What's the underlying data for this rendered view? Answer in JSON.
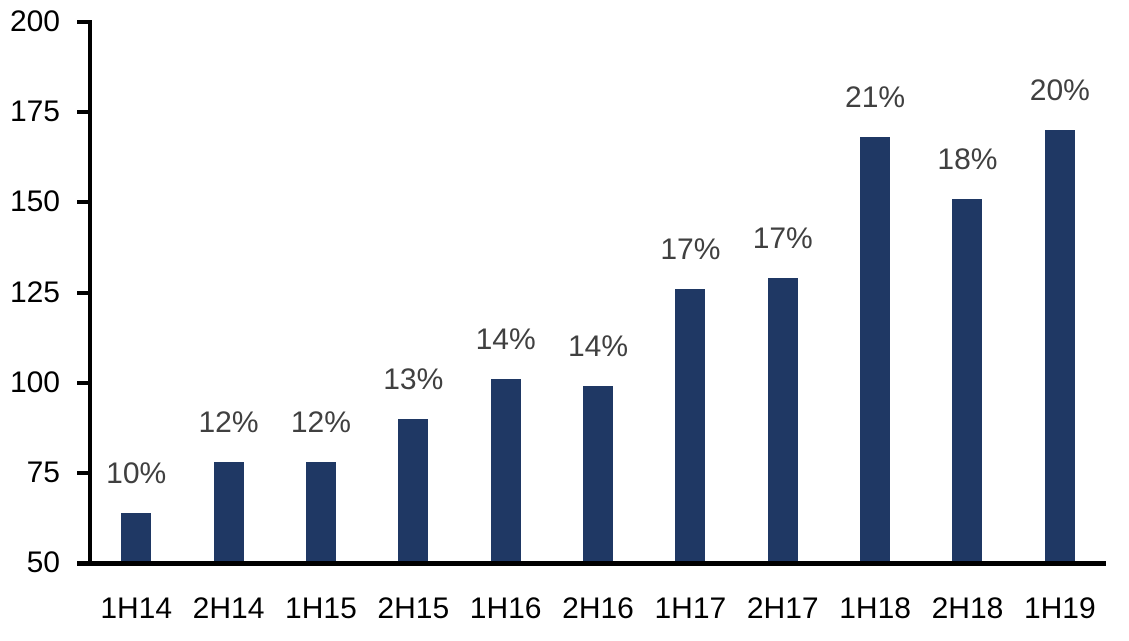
{
  "chart_data": {
    "type": "bar",
    "title": "",
    "xlabel": "",
    "ylabel": "",
    "categories": [
      "1H14",
      "2H14",
      "1H15",
      "2H15",
      "1H16",
      "2H16",
      "1H17",
      "2H17",
      "1H18",
      "2H18",
      "1H19"
    ],
    "values": [
      64,
      78,
      78,
      90,
      101,
      99,
      126,
      129,
      168,
      151,
      170
    ],
    "bar_labels": [
      "10%",
      "12%",
      "12%",
      "13%",
      "14%",
      "14%",
      "17%",
      "17%",
      "21%",
      "18%",
      "20%"
    ],
    "ylim": [
      50,
      200
    ],
    "yticks": [
      50,
      75,
      100,
      125,
      150,
      175,
      200
    ],
    "grid": false,
    "legend": "none",
    "colors": {
      "bar_fill": "#1F3864",
      "bar_label": "#404040",
      "axis": "#000000",
      "tick_text": "#000000",
      "background": "#ffffff"
    }
  }
}
